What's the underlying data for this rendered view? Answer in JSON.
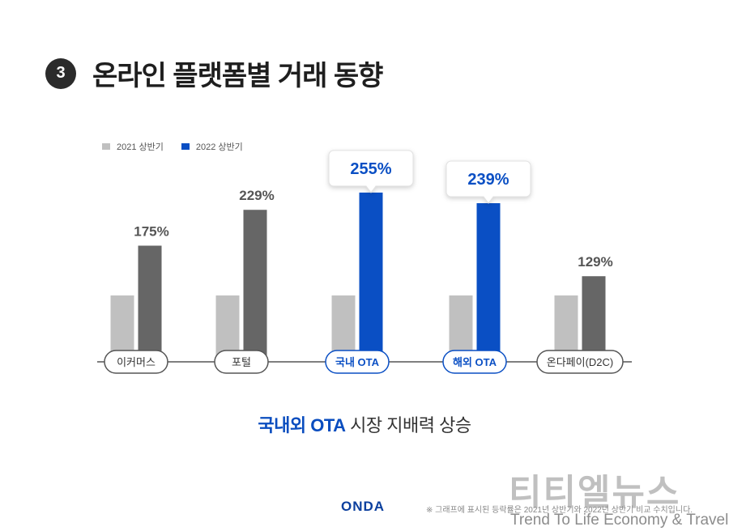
{
  "header": {
    "badge": "3",
    "title": "온라인 플랫폼별 거래 동향"
  },
  "colors": {
    "y2021": "#c0c0c0",
    "gray2022": "#666666",
    "blue2022": "#0a4fc4"
  },
  "chart_data": {
    "type": "bar",
    "categories": [
      "이커머스",
      "포털",
      "국내 OTA",
      "해외 OTA",
      "온다페이(D2C)"
    ],
    "series": [
      {
        "name": "2021 상반기",
        "values": [
          100,
          100,
          100,
          100,
          100
        ]
      },
      {
        "name": "2022 상반기",
        "values": [
          175,
          229,
          255,
          239,
          129
        ]
      }
    ],
    "data_labels": [
      "175%",
      "229%",
      "255%",
      "239%",
      "129%"
    ],
    "highlighted": [
      false,
      false,
      true,
      true,
      false
    ],
    "legend_position": "top-left",
    "grid": false
  },
  "caption": {
    "highlight": "국내외 OTA",
    "rest": " 시장 지배력 상승"
  },
  "footer": {
    "logo": "ONDA",
    "note": "※ 그래프에 표시된 등락률은 2021년 상반기와 2022년 상반기 비교 수치입니다."
  },
  "watermark": {
    "ko": "티티엘뉴스",
    "en": "Trend To Life Economy & Travel"
  }
}
